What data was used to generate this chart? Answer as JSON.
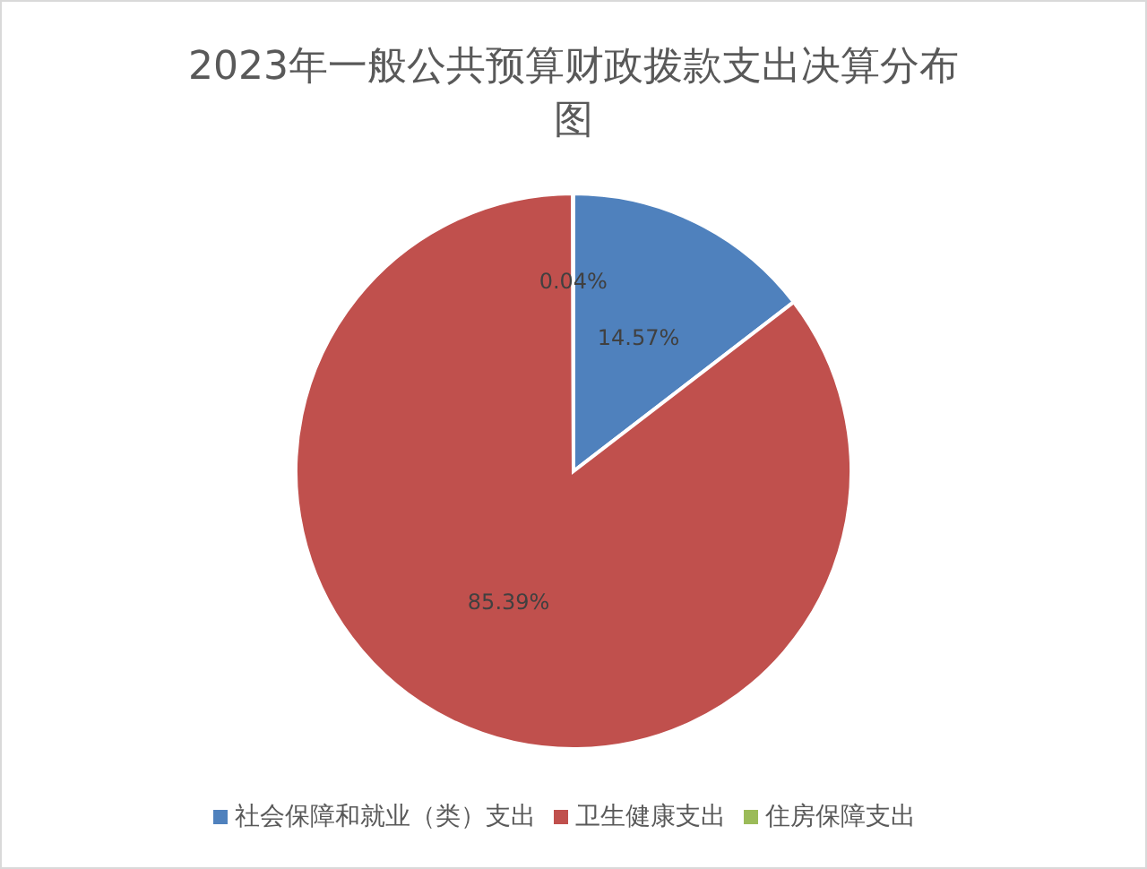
{
  "chart_data": {
    "type": "pie",
    "title": "2023年一般公共预算财政拨款支出决算分布图",
    "categories": [
      "社会保障和就业（类）支出",
      "卫生健康支出",
      "住房保障支出"
    ],
    "values": [
      14.57,
      85.39,
      0.04
    ],
    "colors": [
      "#4f81bd",
      "#c0504d",
      "#9bbb59"
    ],
    "value_labels": [
      "14.57%",
      "85.39%",
      "0.04%"
    ],
    "legend": "bottom"
  }
}
